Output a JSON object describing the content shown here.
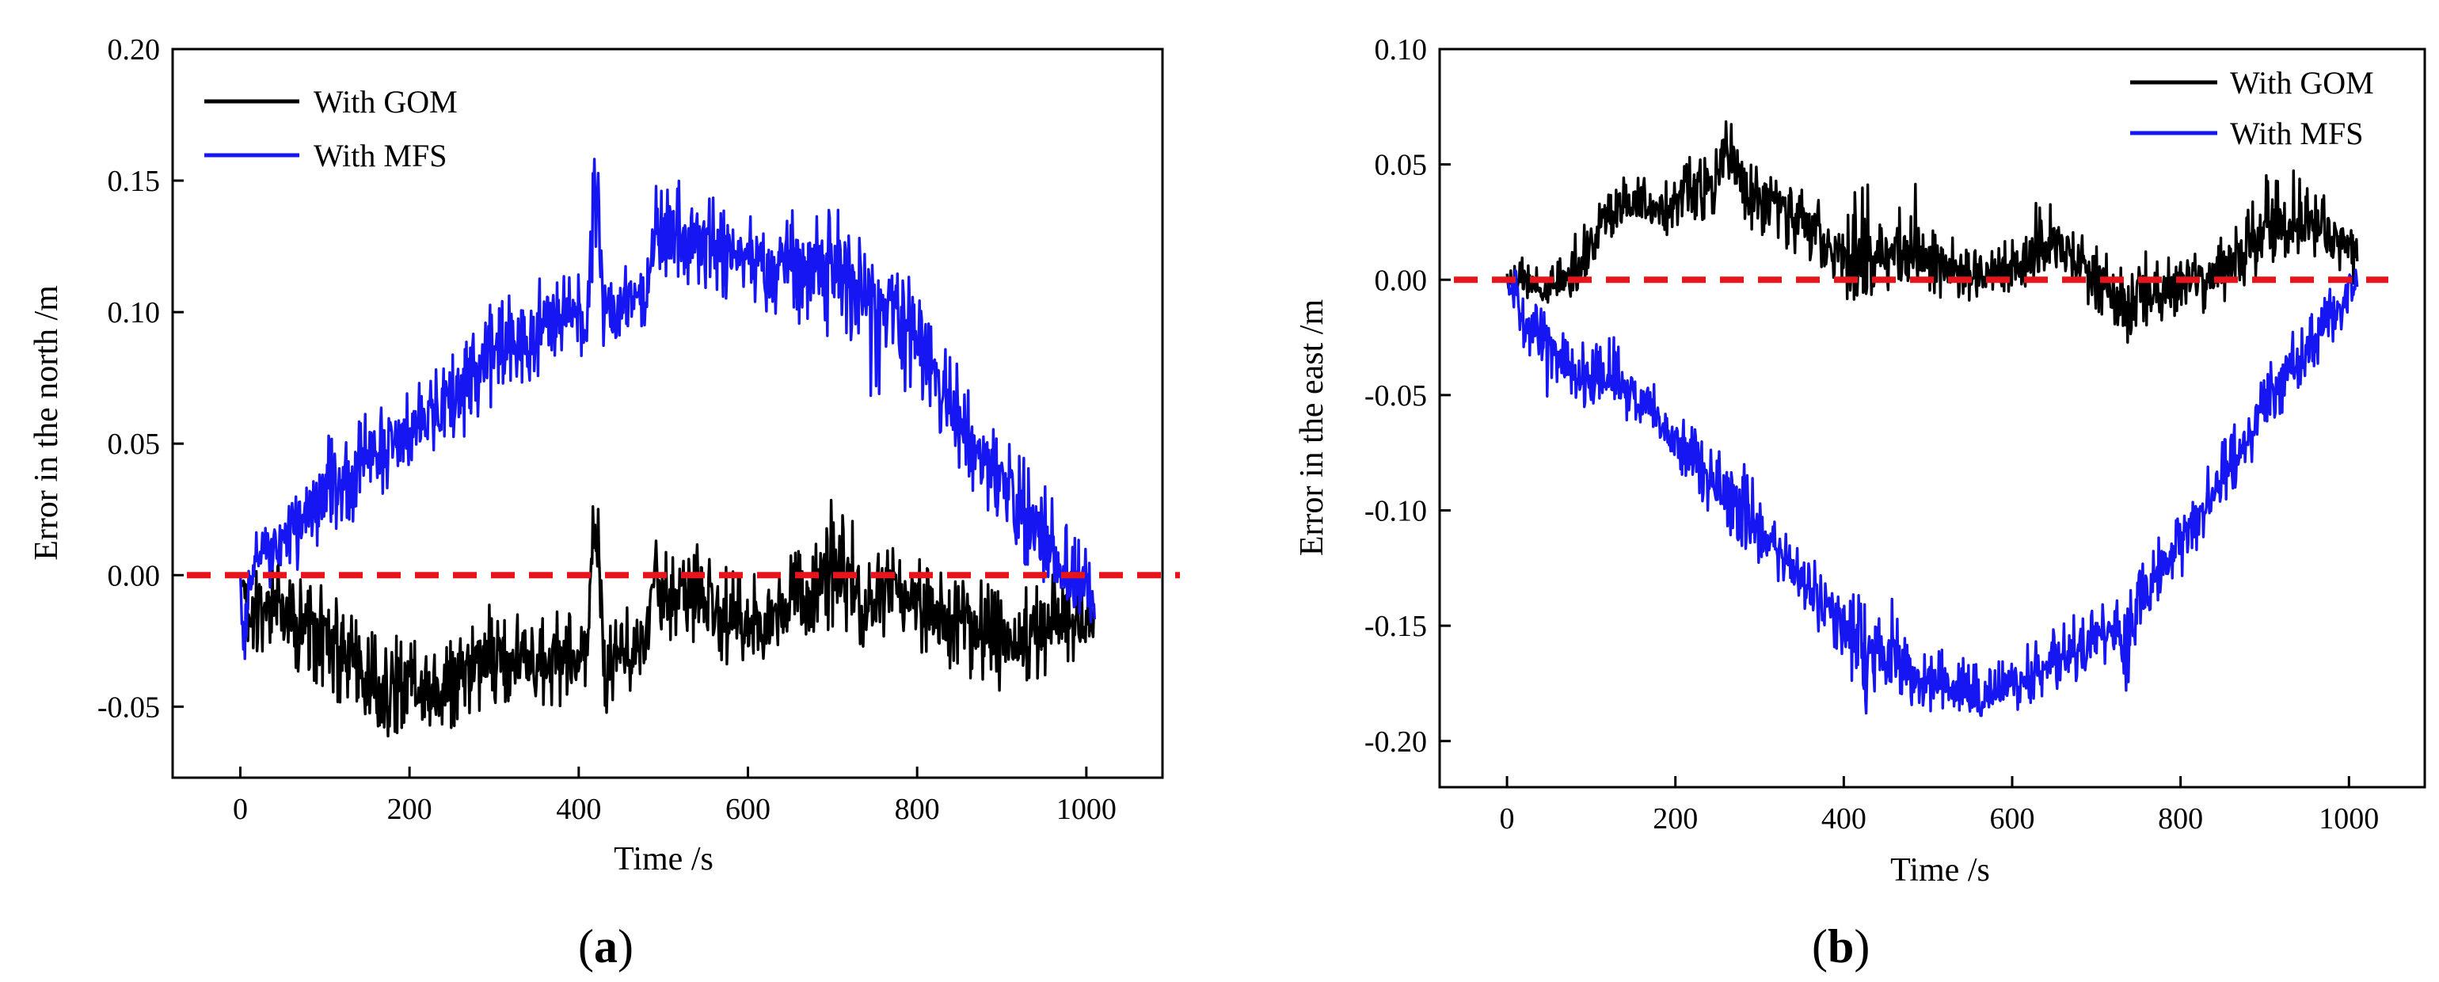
{
  "figure": {
    "panels": [
      {
        "label_open": "(",
        "label_letter": "a",
        "label_close": ")"
      },
      {
        "label_open": "(",
        "label_letter": "b",
        "label_close": ")"
      }
    ]
  },
  "chart_data": [
    {
      "type": "line",
      "xlabel": "Time /s",
      "ylabel": "Error in the north /m",
      "xlim": [
        -80,
        1090
      ],
      "ylim": [
        -0.077,
        0.2
      ],
      "x_ticks": [
        0,
        200,
        400,
        600,
        800,
        1000
      ],
      "x_tick_labels": [
        "0",
        "200",
        "400",
        "600",
        "800",
        "1000"
      ],
      "y_ticks": [
        -0.05,
        0.0,
        0.05,
        0.1,
        0.15,
        0.2
      ],
      "y_tick_labels": [
        "-0.05",
        "0.00",
        "0.05",
        "0.10",
        "0.15",
        "0.20"
      ],
      "grid": false,
      "legend_position": "top-left",
      "reference_line": {
        "y": 0.0,
        "color": "#e8141c",
        "style": "dashed"
      },
      "series": [
        {
          "name": "With GOM",
          "color": "#000000",
          "x": [
            0,
            10,
            20,
            40,
            60,
            80,
            100,
            120,
            150,
            175,
            200,
            225,
            250,
            275,
            300,
            325,
            350,
            375,
            400,
            410,
            420,
            430,
            440,
            460,
            480,
            490,
            500,
            525,
            550,
            575,
            600,
            625,
            650,
            675,
            700,
            725,
            750,
            775,
            800,
            825,
            850,
            875,
            900,
            925,
            950,
            975,
            1000,
            1010
          ],
          "values": [
            0.0,
            -0.01,
            -0.015,
            -0.01,
            -0.02,
            -0.02,
            -0.025,
            -0.03,
            -0.04,
            -0.045,
            -0.04,
            -0.045,
            -0.04,
            -0.035,
            -0.03,
            -0.035,
            -0.035,
            -0.03,
            -0.035,
            -0.03,
            0.02,
            -0.035,
            -0.03,
            -0.03,
            -0.025,
            0.0,
            -0.01,
            -0.005,
            -0.01,
            -0.015,
            -0.02,
            -0.015,
            -0.01,
            -0.01,
            0.0,
            -0.005,
            -0.01,
            -0.005,
            -0.01,
            -0.015,
            -0.02,
            -0.02,
            -0.025,
            -0.025,
            -0.02,
            -0.015,
            -0.02,
            -0.015
          ],
          "range_lo": [
            -0.005,
            -0.03,
            -0.03,
            -0.03,
            -0.035,
            -0.04,
            -0.045,
            -0.05,
            -0.058,
            -0.063,
            -0.06,
            -0.062,
            -0.058,
            -0.055,
            -0.05,
            -0.052,
            -0.055,
            -0.05,
            -0.052,
            -0.045,
            -0.01,
            -0.058,
            -0.048,
            -0.045,
            -0.04,
            -0.02,
            -0.028,
            -0.025,
            -0.03,
            -0.035,
            -0.035,
            -0.035,
            -0.03,
            -0.03,
            -0.022,
            -0.025,
            -0.03,
            -0.025,
            -0.03,
            -0.035,
            -0.04,
            -0.04,
            -0.045,
            -0.045,
            -0.042,
            -0.035,
            -0.03,
            -0.022
          ],
          "range_hi": [
            0.005,
            0.008,
            0.005,
            0.005,
            0.005,
            0.0,
            -0.005,
            -0.01,
            -0.02,
            -0.025,
            -0.02,
            -0.025,
            -0.02,
            -0.015,
            -0.01,
            -0.015,
            -0.015,
            -0.01,
            -0.018,
            -0.012,
            0.047,
            -0.015,
            -0.012,
            -0.012,
            -0.008,
            0.018,
            0.008,
            0.015,
            0.01,
            0.005,
            0.0,
            0.005,
            0.01,
            0.01,
            0.03,
            0.02,
            0.01,
            0.015,
            0.01,
            0.005,
            0.0,
            0.0,
            -0.005,
            -0.005,
            0.0,
            0.005,
            0.0,
            -0.005
          ]
        },
        {
          "name": "With MFS",
          "color": "#1616f2",
          "x": [
            0,
            5,
            10,
            20,
            40,
            60,
            80,
            100,
            125,
            150,
            175,
            200,
            225,
            250,
            275,
            300,
            325,
            350,
            375,
            400,
            410,
            420,
            430,
            440,
            460,
            480,
            490,
            500,
            525,
            550,
            575,
            600,
            625,
            650,
            675,
            700,
            725,
            750,
            775,
            800,
            825,
            850,
            875,
            900,
            925,
            950,
            975,
            1000,
            1010
          ],
          "values": [
            0.0,
            -0.04,
            0.0,
            0.005,
            0.01,
            0.015,
            0.025,
            0.03,
            0.035,
            0.045,
            0.05,
            0.055,
            0.06,
            0.065,
            0.075,
            0.085,
            0.09,
            0.095,
            0.1,
            0.1,
            0.095,
            0.16,
            0.1,
            0.1,
            0.105,
            0.1,
            0.13,
            0.13,
            0.13,
            0.125,
            0.125,
            0.12,
            0.12,
            0.12,
            0.115,
            0.115,
            0.11,
            0.1,
            0.095,
            0.085,
            0.075,
            0.06,
            0.045,
            0.035,
            0.025,
            0.015,
            0.0,
            -0.005,
            -0.01
          ],
          "range_lo": [
            -0.005,
            -0.05,
            -0.01,
            -0.005,
            -0.005,
            0.0,
            0.005,
            0.01,
            0.018,
            0.025,
            0.032,
            0.037,
            0.043,
            0.048,
            0.055,
            0.065,
            0.07,
            0.075,
            0.082,
            0.085,
            0.08,
            0.09,
            0.085,
            0.087,
            0.092,
            0.09,
            0.11,
            0.11,
            0.11,
            0.105,
            0.105,
            0.1,
            0.1,
            0.098,
            0.092,
            0.09,
            0.085,
            0.06,
            0.072,
            0.065,
            0.055,
            0.04,
            0.025,
            0.015,
            0.005,
            -0.005,
            -0.015,
            -0.02,
            -0.018
          ],
          "range_hi": [
            0.005,
            -0.02,
            0.015,
            0.022,
            0.025,
            0.03,
            0.045,
            0.055,
            0.055,
            0.062,
            0.07,
            0.072,
            0.08,
            0.085,
            0.095,
            0.105,
            0.11,
            0.115,
            0.115,
            0.115,
            0.11,
            0.18,
            0.118,
            0.115,
            0.12,
            0.115,
            0.153,
            0.15,
            0.15,
            0.145,
            0.142,
            0.14,
            0.14,
            0.138,
            0.145,
            0.148,
            0.13,
            0.125,
            0.12,
            0.11,
            0.095,
            0.08,
            0.065,
            0.055,
            0.045,
            0.035,
            0.02,
            0.01,
            -0.002
          ]
        }
      ]
    },
    {
      "type": "line",
      "xlabel": "Time /s",
      "ylabel": "Error in the east /m",
      "xlim": [
        -80,
        1090
      ],
      "ylim": [
        -0.22,
        0.1
      ],
      "x_ticks": [
        0,
        200,
        400,
        600,
        800,
        1000
      ],
      "x_tick_labels": [
        "0",
        "200",
        "400",
        "600",
        "800",
        "1000"
      ],
      "y_ticks": [
        -0.2,
        -0.15,
        -0.1,
        -0.05,
        0.0,
        0.05,
        0.1
      ],
      "y_tick_labels": [
        "-0.20",
        "-0.15",
        "-0.10",
        "-0.05",
        "0.00",
        "0.05",
        "0.10"
      ],
      "grid": false,
      "legend_position": "top-right",
      "reference_line": {
        "y": 0.0,
        "color": "#e8141c",
        "style": "dashed"
      },
      "series": [
        {
          "name": "With GOM",
          "color": "#000000",
          "x": [
            0,
            20,
            40,
            60,
            80,
            100,
            125,
            150,
            175,
            200,
            225,
            250,
            260,
            275,
            300,
            325,
            350,
            375,
            400,
            420,
            440,
            460,
            480,
            500,
            525,
            550,
            575,
            600,
            625,
            650,
            675,
            700,
            725,
            735,
            750,
            775,
            800,
            825,
            850,
            875,
            900,
            925,
            950,
            975,
            1000,
            1010
          ],
          "values": [
            0.0,
            0.0,
            -0.005,
            0.0,
            0.0,
            0.02,
            0.03,
            0.035,
            0.03,
            0.035,
            0.04,
            0.045,
            0.06,
            0.04,
            0.035,
            0.03,
            0.025,
            0.02,
            0.01,
            0.0,
            0.01,
            0.01,
            0.015,
            0.01,
            0.005,
            0.005,
            0.0,
            0.005,
            0.01,
            0.015,
            0.01,
            0.0,
            -0.005,
            -0.02,
            0.0,
            -0.005,
            0.0,
            0.0,
            0.005,
            0.01,
            0.02,
            0.025,
            0.025,
            0.02,
            0.015,
            0.01
          ],
          "range_lo": [
            -0.005,
            -0.01,
            -0.01,
            -0.01,
            -0.008,
            0.005,
            0.018,
            0.02,
            0.018,
            0.02,
            0.025,
            0.028,
            0.04,
            0.025,
            0.02,
            0.015,
            0.01,
            0.005,
            -0.005,
            -0.022,
            -0.005,
            -0.005,
            0.0,
            -0.005,
            -0.01,
            -0.01,
            -0.01,
            -0.005,
            -0.002,
            0.0,
            -0.005,
            -0.015,
            -0.02,
            -0.045,
            -0.02,
            -0.02,
            -0.015,
            -0.015,
            -0.01,
            -0.005,
            0.005,
            0.01,
            0.01,
            0.005,
            0.0,
            -0.008
          ],
          "range_hi": [
            0.01,
            0.01,
            0.005,
            0.01,
            0.025,
            0.035,
            0.045,
            0.05,
            0.045,
            0.05,
            0.055,
            0.06,
            0.078,
            0.055,
            0.05,
            0.045,
            0.04,
            0.035,
            0.025,
            0.055,
            0.025,
            0.025,
            0.055,
            0.025,
            0.02,
            0.02,
            0.015,
            0.02,
            0.035,
            0.035,
            0.025,
            0.015,
            0.01,
            0.002,
            0.015,
            0.01,
            0.015,
            0.015,
            0.02,
            0.03,
            0.045,
            0.05,
            0.045,
            0.04,
            0.03,
            0.02
          ]
        },
        {
          "name": "With MFS",
          "color": "#1616f2",
          "x": [
            0,
            20,
            40,
            60,
            80,
            100,
            125,
            150,
            175,
            200,
            225,
            250,
            275,
            300,
            325,
            350,
            375,
            400,
            420,
            440,
            460,
            480,
            500,
            525,
            550,
            575,
            600,
            625,
            650,
            675,
            700,
            725,
            735,
            750,
            775,
            800,
            825,
            850,
            875,
            900,
            925,
            950,
            975,
            1000,
            1010
          ],
          "values": [
            0.0,
            -0.015,
            -0.025,
            -0.035,
            -0.04,
            -0.045,
            -0.04,
            -0.05,
            -0.06,
            -0.07,
            -0.08,
            -0.09,
            -0.1,
            -0.11,
            -0.12,
            -0.13,
            -0.14,
            -0.15,
            -0.17,
            -0.16,
            -0.165,
            -0.17,
            -0.175,
            -0.175,
            -0.18,
            -0.18,
            -0.175,
            -0.17,
            -0.165,
            -0.16,
            -0.155,
            -0.15,
            -0.17,
            -0.14,
            -0.125,
            -0.115,
            -0.1,
            -0.085,
            -0.07,
            -0.055,
            -0.04,
            -0.03,
            -0.015,
            -0.005,
            0.0
          ],
          "range_lo": [
            -0.005,
            -0.03,
            -0.053,
            -0.05,
            -0.055,
            -0.06,
            -0.055,
            -0.065,
            -0.075,
            -0.085,
            -0.095,
            -0.105,
            -0.115,
            -0.125,
            -0.135,
            -0.145,
            -0.155,
            -0.165,
            -0.2,
            -0.175,
            -0.18,
            -0.185,
            -0.188,
            -0.185,
            -0.19,
            -0.19,
            -0.188,
            -0.183,
            -0.178,
            -0.175,
            -0.17,
            -0.165,
            -0.192,
            -0.155,
            -0.14,
            -0.13,
            -0.115,
            -0.1,
            -0.085,
            -0.07,
            -0.055,
            -0.045,
            -0.03,
            -0.018,
            -0.008
          ],
          "range_hi": [
            0.01,
            0.0,
            -0.01,
            -0.02,
            -0.025,
            -0.028,
            -0.02,
            -0.035,
            -0.045,
            -0.055,
            -0.065,
            -0.075,
            -0.06,
            -0.095,
            -0.105,
            -0.115,
            -0.125,
            -0.135,
            -0.135,
            -0.145,
            -0.13,
            -0.155,
            -0.16,
            -0.16,
            -0.165,
            -0.165,
            -0.16,
            -0.155,
            -0.15,
            -0.14,
            -0.135,
            -0.13,
            -0.14,
            -0.125,
            -0.11,
            -0.1,
            -0.085,
            -0.07,
            -0.055,
            -0.04,
            -0.025,
            -0.015,
            0.0,
            0.01,
            0.015
          ]
        }
      ]
    }
  ]
}
